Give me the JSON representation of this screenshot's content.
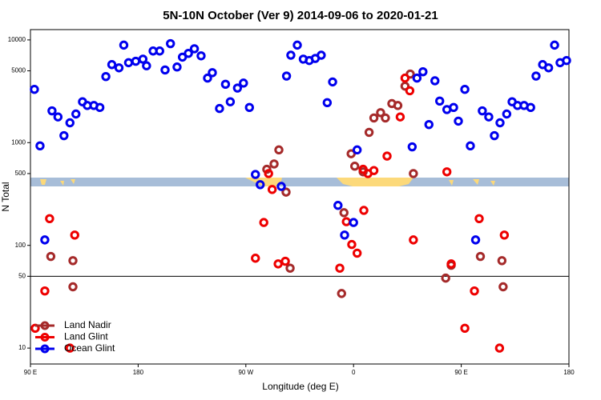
{
  "chart_data": {
    "type": "scatter",
    "title": "5N-10N October (Ver 9)   2014-09-06 to 2020-01-21",
    "x_label": "Longitude (deg E)",
    "y_label": "N Total",
    "log_y": true,
    "legend": "lower left",
    "hline": 50,
    "xlim": [
      90,
      540
    ],
    "xticks": [
      {
        "value": 90,
        "label": "90 E"
      },
      {
        "value": 180,
        "label": "180"
      },
      {
        "value": 270,
        "label": "90 W"
      },
      {
        "value": 360,
        "label": "0"
      },
      {
        "value": 450,
        "label": "90 E"
      },
      {
        "value": 540,
        "label": "180"
      }
    ],
    "ylim": [
      7,
      12600
    ],
    "yticks": [
      10,
      50,
      100,
      500,
      1000,
      5000,
      10000
    ],
    "series": [
      {
        "name": "Land Nadir",
        "color": "#a52a2a",
        "x": [
          107,
          125.5,
          125.5,
          297.6,
          293.6,
          287.5,
          303.6,
          307,
          350,
          352,
          358,
          361,
          368,
          373,
          377,
          382.6,
          386.6,
          392,
          397,
          403,
          407.4,
          410,
          437,
          441.6,
          466,
          484,
          485
        ],
        "values": [
          78,
          71,
          39.5,
          850,
          620,
          550,
          330,
          60,
          34,
          208,
          780,
          590,
          520,
          1260,
          1740,
          1960,
          1740,
          2400,
          2300,
          3550,
          4650,
          500,
          48,
          64,
          78,
          71,
          39.5
        ]
      },
      {
        "name": "Land Glint",
        "color": "#ee0000",
        "x": [
          94,
          102,
          106,
          127,
          123,
          278,
          285,
          289,
          292,
          297,
          303,
          348.5,
          354,
          358.5,
          363,
          368,
          368.6,
          372,
          377,
          388,
          399,
          403,
          407,
          410,
          438,
          441.6,
          453,
          461,
          465,
          482,
          486
        ],
        "values": [
          15.6,
          36,
          182,
          126,
          10,
          75,
          167,
          500,
          350,
          66,
          70,
          60,
          170,
          102,
          84,
          550,
          219,
          500,
          535,
          740,
          1780,
          4250,
          3200,
          113,
          520,
          66,
          15.6,
          36,
          182,
          10,
          126
        ]
      },
      {
        "name": "Ocean Glint",
        "color": "#0000ee",
        "x": [
          93.3,
          98,
          102,
          108,
          113,
          118,
          123,
          128,
          133.5,
          137.5,
          143,
          148,
          153,
          158,
          164,
          168,
          172,
          178,
          184,
          187,
          192.5,
          198,
          202.5,
          207,
          212.5,
          217,
          222,
          227,
          232.6,
          238,
          242,
          248,
          253,
          257,
          263,
          268,
          273,
          278,
          282,
          299.6,
          304,
          307.6,
          313,
          318,
          323,
          328,
          333,
          338,
          342.5,
          347,
          352.5,
          360,
          363,
          409,
          413,
          418,
          423,
          428,
          432,
          438,
          443.6,
          447.6,
          453,
          457.6,
          462,
          467.6,
          473,
          477.7,
          482.4,
          488,
          492.5,
          497,
          502.5,
          508,
          512.5,
          518,
          523,
          528,
          532.6,
          538
        ],
        "values": [
          3300,
          930,
          113,
          2040,
          1780,
          1170,
          1560,
          1900,
          2500,
          2300,
          2300,
          2200,
          4400,
          5750,
          5350,
          8900,
          6000,
          6200,
          6500,
          5600,
          7800,
          7800,
          5100,
          9200,
          5450,
          6800,
          7400,
          8200,
          7000,
          4250,
          4800,
          2150,
          3700,
          2500,
          3400,
          3800,
          2200,
          490,
          390,
          375,
          4450,
          7100,
          8900,
          6500,
          6300,
          6600,
          7100,
          2450,
          3900,
          245,
          126,
          167,
          850,
          910,
          4250,
          4900,
          1500,
          4000,
          2540,
          2100,
          2200,
          1620,
          3300,
          930,
          113,
          2040,
          1780,
          1170,
          1560,
          1900,
          2500,
          2300,
          2300,
          2200,
          4450,
          5750,
          5350,
          8900,
          6000,
          6300
        ]
      }
    ]
  }
}
